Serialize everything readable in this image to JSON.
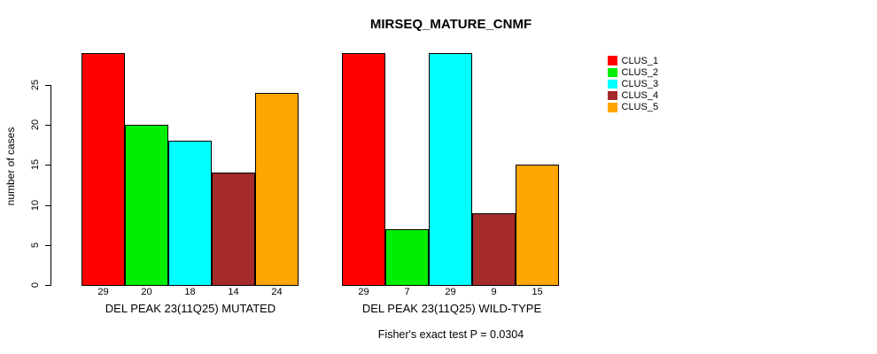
{
  "chart_data": {
    "type": "bar",
    "title": "MIRSEQ_MATURE_CNMF",
    "ylabel": "number of cases",
    "xlabel": "",
    "ylim": [
      0,
      29
    ],
    "yticks": [
      0,
      5,
      10,
      15,
      20,
      25
    ],
    "grid": false,
    "legend_position": "right",
    "bar_value_labels_shown": true,
    "groups": [
      {
        "label": "DEL PEAK 23(11Q25) MUTATED",
        "values": [
          29,
          20,
          18,
          14,
          24
        ]
      },
      {
        "label": "DEL PEAK 23(11Q25) WILD-TYPE",
        "values": [
          29,
          7,
          29,
          9,
          15
        ]
      }
    ],
    "series": [
      {
        "name": "CLUS_1",
        "color": "#FF0000"
      },
      {
        "name": "CLUS_2",
        "color": "#00EE00"
      },
      {
        "name": "CLUS_3",
        "color": "#00FFFF"
      },
      {
        "name": "CLUS_4",
        "color": "#A52A2A"
      },
      {
        "name": "CLUS_5",
        "color": "#FFA500"
      }
    ],
    "annotation": "Fisher's exact test P = 0.0304"
  }
}
